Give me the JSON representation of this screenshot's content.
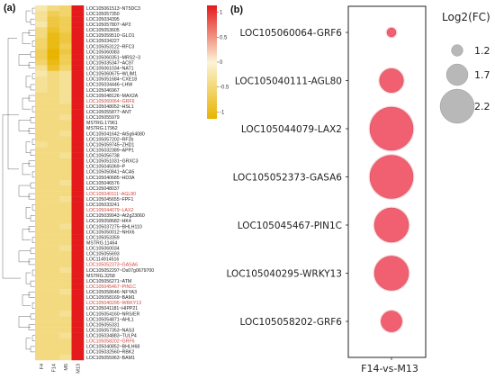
{
  "panel_a_label": "(a)",
  "panel_b_label": "(b)",
  "colors": {
    "low": "#e8b400",
    "mid": "#fbf4d6",
    "high": "#e41a1c",
    "highlight_text": "#d2453b",
    "normal_text": "#222222",
    "bubble": "#f06070",
    "legend_bubble": "#b8b8b8"
  },
  "chart_data": [
    {
      "type": "heatmap",
      "columns": [
        "F4",
        "F14",
        "M5",
        "M13"
      ],
      "colorbar_ticks": [
        "1",
        "0.5",
        "0",
        "-0.5",
        "-1"
      ],
      "colorbar_range": [
        -1,
        1
      ],
      "rows": [
        {
          "label": "LOC105061513~NT5DC3",
          "values": [
            -0.2,
            -0.4,
            -0.5,
            1.0
          ],
          "highlight": false
        },
        {
          "label": "LOC105057350",
          "values": [
            -0.3,
            -0.6,
            -0.5,
            1.0
          ],
          "highlight": false
        },
        {
          "label": "LOC105034395",
          "values": [
            -0.3,
            -0.7,
            -0.6,
            1.0
          ],
          "highlight": false
        },
        {
          "label": "LOC105057807~AP2",
          "values": [
            -0.2,
            -0.7,
            -0.6,
            1.0
          ],
          "highlight": false
        },
        {
          "label": "LOC105053605",
          "values": [
            -0.4,
            -0.8,
            -0.6,
            1.0
          ],
          "highlight": false
        },
        {
          "label": "LOC105059510~GLO1",
          "values": [
            -0.4,
            -0.9,
            -0.7,
            1.0
          ],
          "highlight": false
        },
        {
          "label": "LOC105034227",
          "values": [
            -0.5,
            -0.9,
            -0.7,
            1.0
          ],
          "highlight": false
        },
        {
          "label": "LOC105053122~RFC3",
          "values": [
            -0.5,
            -0.9,
            -0.6,
            1.0
          ],
          "highlight": false
        },
        {
          "label": "LOC105060083",
          "values": [
            -0.6,
            -1.0,
            -0.7,
            1.0
          ],
          "highlight": false
        },
        {
          "label": "LOC105060351~MRS2~3",
          "values": [
            -0.6,
            -1.0,
            -0.6,
            1.0
          ],
          "highlight": false
        },
        {
          "label": "LOC105035347~AC97",
          "values": [
            -0.5,
            -0.9,
            -0.6,
            1.0
          ],
          "highlight": false
        },
        {
          "label": "LOC105061034~NAT1",
          "values": [
            -0.3,
            -0.8,
            -0.5,
            1.0
          ],
          "highlight": false
        },
        {
          "label": "LOC105060675~WLIM1",
          "values": [
            -0.2,
            -0.4,
            -0.3,
            1.0
          ],
          "highlight": false
        },
        {
          "label": "LOC105051684~CXE18",
          "values": [
            -0.3,
            -0.4,
            -0.3,
            1.0
          ],
          "highlight": false
        },
        {
          "label": "LOC105034446~LHW",
          "values": [
            -0.3,
            -0.4,
            -0.3,
            1.0
          ],
          "highlight": false
        },
        {
          "label": "LOC105046967",
          "values": [
            -0.3,
            -0.4,
            -0.3,
            1.0
          ],
          "highlight": false
        },
        {
          "label": "LOC105048126~MAX2A",
          "values": [
            -0.4,
            -0.4,
            -0.3,
            1.0
          ],
          "highlight": false
        },
        {
          "label": "LOC105060064~GRF6",
          "values": [
            -0.4,
            -0.4,
            -0.3,
            1.0
          ],
          "highlight": true
        },
        {
          "label": "LOC105048052~HSL1",
          "values": [
            -0.4,
            -0.4,
            -0.4,
            1.0
          ],
          "highlight": false
        },
        {
          "label": "LOC105055877~ANT",
          "values": [
            -0.4,
            -0.4,
            -0.4,
            1.0
          ],
          "highlight": false
        },
        {
          "label": "LOC105055979",
          "values": [
            -0.4,
            -0.4,
            -0.3,
            1.0
          ],
          "highlight": false
        },
        {
          "label": "MSTRG.17961",
          "values": [
            -0.4,
            -0.4,
            -0.4,
            1.0
          ],
          "highlight": false
        },
        {
          "label": "MSTRG.17962",
          "values": [
            -0.4,
            -0.4,
            -0.4,
            1.0
          ],
          "highlight": false
        },
        {
          "label": "LOC105041642~At5g64080",
          "values": [
            -0.4,
            -0.4,
            -0.3,
            1.0
          ],
          "highlight": false
        },
        {
          "label": "LOC105057202~RF2b",
          "values": [
            -0.4,
            -0.4,
            -0.4,
            1.0
          ],
          "highlight": false
        },
        {
          "label": "LOC105059745~ZHD1",
          "values": [
            -0.3,
            -0.4,
            -0.4,
            1.0
          ],
          "highlight": false
        },
        {
          "label": "LOC105032389~APP1",
          "values": [
            -0.4,
            -0.4,
            -0.4,
            1.0
          ],
          "highlight": false
        },
        {
          "label": "LOC105056738",
          "values": [
            -0.4,
            -0.4,
            -0.3,
            1.0
          ],
          "highlight": false
        },
        {
          "label": "LOC105051031~GRXC3",
          "values": [
            -0.4,
            -0.4,
            -0.4,
            1.0
          ],
          "highlight": false
        },
        {
          "label": "LOC105045069~P",
          "values": [
            -0.4,
            -0.4,
            -0.4,
            1.0
          ],
          "highlight": false
        },
        {
          "label": "LOC105050841~ACA5",
          "values": [
            -0.4,
            -0.4,
            -0.4,
            1.0
          ],
          "highlight": false
        },
        {
          "label": "LOC105040685~HD3A",
          "values": [
            -0.4,
            -0.4,
            -0.4,
            1.0
          ],
          "highlight": false
        },
        {
          "label": "LOC105046576",
          "values": [
            -0.4,
            -0.4,
            -0.3,
            1.0
          ],
          "highlight": false
        },
        {
          "label": "LOC105048037",
          "values": [
            -0.4,
            -0.4,
            -0.4,
            1.0
          ],
          "highlight": false
        },
        {
          "label": "LOC105040111~AGL80",
          "values": [
            -0.4,
            -0.4,
            -0.4,
            1.0
          ],
          "highlight": true
        },
        {
          "label": "LOC105045655~FPF1",
          "values": [
            -0.4,
            -0.4,
            -0.3,
            1.0
          ],
          "highlight": false
        },
        {
          "label": "LOC105033241",
          "values": [
            -0.4,
            -0.4,
            -0.4,
            1.0
          ],
          "highlight": false
        },
        {
          "label": "LOC105044079~LAX2",
          "values": [
            -0.4,
            -0.4,
            -0.4,
            1.0
          ],
          "highlight": true
        },
        {
          "label": "LOC105039943~At2g23060",
          "values": [
            -0.4,
            -0.4,
            -0.4,
            1.0
          ],
          "highlight": false
        },
        {
          "label": "LOC105058682~HK4",
          "values": [
            -0.4,
            -0.4,
            -0.4,
            1.0
          ],
          "highlight": false
        },
        {
          "label": "LOC105037275~BHLH110",
          "values": [
            -0.4,
            -0.4,
            -0.3,
            1.0
          ],
          "highlight": false
        },
        {
          "label": "LOC105050012~NHX6",
          "values": [
            -0.4,
            -0.4,
            -0.4,
            1.0
          ],
          "highlight": false
        },
        {
          "label": "LOC105053359",
          "values": [
            -0.4,
            -0.4,
            -0.4,
            1.0
          ],
          "highlight": false
        },
        {
          "label": "MSTRG.11464",
          "values": [
            -0.4,
            -0.4,
            -0.4,
            1.0
          ],
          "highlight": false
        },
        {
          "label": "LOC105060034",
          "values": [
            -0.4,
            -0.4,
            -0.3,
            1.0
          ],
          "highlight": false
        },
        {
          "label": "LOC105055693",
          "values": [
            -0.4,
            -0.4,
            -0.4,
            1.0
          ],
          "highlight": false
        },
        {
          "label": "LOC114914516",
          "values": [
            -0.4,
            -0.4,
            -0.4,
            1.0
          ],
          "highlight": false
        },
        {
          "label": "LOC105052373~GASA6",
          "values": [
            -0.4,
            -0.4,
            -0.4,
            1.0
          ],
          "highlight": true
        },
        {
          "label": "LOC105052297~Os07g0679700",
          "values": [
            -0.4,
            -0.4,
            -0.3,
            1.0
          ],
          "highlight": false
        },
        {
          "label": "MSTRG.3258",
          "values": [
            -0.4,
            -0.4,
            -0.4,
            1.0
          ],
          "highlight": false
        },
        {
          "label": "LOC105056271~ATM",
          "values": [
            -0.4,
            -0.4,
            -0.4,
            1.0
          ],
          "highlight": false
        },
        {
          "label": "LOC105045467~PIN1C",
          "values": [
            -0.4,
            -0.4,
            -0.4,
            1.0
          ],
          "highlight": true
        },
        {
          "label": "LOC105058646~NFYA3",
          "values": [
            -0.4,
            -0.4,
            -0.3,
            1.0
          ],
          "highlight": false
        },
        {
          "label": "LOC105058169~BAM1",
          "values": [
            -0.4,
            -0.4,
            -0.4,
            1.0
          ],
          "highlight": false
        },
        {
          "label": "LOC105040295~WRKY13",
          "values": [
            -0.4,
            -0.4,
            -0.4,
            1.0
          ],
          "highlight": true
        },
        {
          "label": "LOC105041181~HIPP21",
          "values": [
            -0.4,
            -0.4,
            -0.4,
            1.0
          ],
          "highlight": false
        },
        {
          "label": "LOC105054160~NRS/ER",
          "values": [
            -0.4,
            -0.4,
            -0.3,
            1.0
          ],
          "highlight": false
        },
        {
          "label": "LOC105054871~AHL1",
          "values": [
            -0.4,
            -0.4,
            -0.4,
            1.0
          ],
          "highlight": false
        },
        {
          "label": "LOC105055331",
          "values": [
            -0.4,
            -0.4,
            -0.4,
            1.0
          ],
          "highlight": false
        },
        {
          "label": "LOC105057353~NAS3",
          "values": [
            -0.4,
            -0.4,
            -0.4,
            1.0
          ],
          "highlight": false
        },
        {
          "label": "LOC105034883~TULP4",
          "values": [
            -0.4,
            -0.4,
            -0.3,
            1.0
          ],
          "highlight": false
        },
        {
          "label": "LOC105058202~GRF6",
          "values": [
            -0.4,
            -0.4,
            -0.4,
            1.0
          ],
          "highlight": true
        },
        {
          "label": "LOC105040852~BHLH68",
          "values": [
            -0.4,
            -0.4,
            -0.4,
            1.0
          ],
          "highlight": false
        },
        {
          "label": "LOC105032560~RBK2",
          "values": [
            -0.4,
            -0.4,
            -0.4,
            1.0
          ],
          "highlight": false
        },
        {
          "label": "LOC105055963~BAM1",
          "values": [
            -0.4,
            -0.4,
            -0.3,
            1.0
          ],
          "highlight": false
        }
      ]
    },
    {
      "type": "scatter",
      "x_categories": [
        "F14-vs-M13"
      ],
      "legend_title": "Log2(FC)",
      "legend_sizes": [
        1.2,
        1.7,
        2.2
      ],
      "legend_labels": [
        "1.2",
        "1.7",
        "2.2"
      ],
      "points": [
        {
          "gene": "LOC105060064-GRF6",
          "log2fc": 1.15
        },
        {
          "gene": "LOC105040111-AGL80",
          "log2fc": 1.65
        },
        {
          "gene": "LOC105044079-LAX2",
          "log2fc": 2.3
        },
        {
          "gene": "LOC105052373-GASA6",
          "log2fc": 2.3
        },
        {
          "gene": "LOC105045467-PIN1C",
          "log2fc": 2.0
        },
        {
          "gene": "LOC105040295-WRKY13",
          "log2fc": 2.0
        },
        {
          "gene": "LOC105058202-GRF6",
          "log2fc": 1.55
        }
      ]
    }
  ]
}
